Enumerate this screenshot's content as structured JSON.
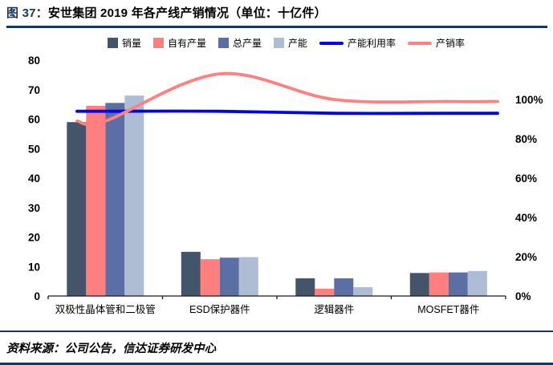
{
  "header": {
    "figure_label": "图 37：",
    "title": "安世集团 2019 年各产线产销情况（单位：十亿件）"
  },
  "legend": [
    {
      "label": "销量",
      "type": "bar",
      "color": "#44546A"
    },
    {
      "label": "自有产量",
      "type": "bar",
      "color": "#FF7F7F"
    },
    {
      "label": "总产量",
      "type": "bar",
      "color": "#5B6FA5"
    },
    {
      "label": "产能",
      "type": "bar",
      "color": "#AFBDD4"
    },
    {
      "label": "产能利用率",
      "type": "line",
      "color": "#0202F2"
    },
    {
      "label": "产销率",
      "type": "line",
      "color": "#FF8080"
    }
  ],
  "chart_data": {
    "type": "bar",
    "title": "安世集团 2019 年各产线产销情况（单位：十亿件）",
    "categories": [
      "双极性晶体管和二极管",
      "ESD保护器件",
      "逻辑器件",
      "MOSFET器件"
    ],
    "bar_series": [
      {
        "name": "销量",
        "axis": "left",
        "values": [
          59,
          15,
          6,
          7.8
        ],
        "color": "#44546A"
      },
      {
        "name": "自有产量",
        "axis": "left",
        "values": [
          64.5,
          12.5,
          2.5,
          8
        ],
        "color": "#FF7F7F"
      },
      {
        "name": "总产量",
        "axis": "left",
        "values": [
          65.5,
          13,
          6,
          8
        ],
        "color": "#5B6FA5"
      },
      {
        "name": "产能",
        "axis": "left",
        "values": [
          68,
          13.2,
          3,
          8.5
        ],
        "color": "#AFBDD4"
      }
    ],
    "line_series": [
      {
        "name": "产能利用率",
        "axis": "right",
        "values_pct": [
          94,
          94,
          93,
          93
        ],
        "color": "#0202F2"
      },
      {
        "name": "产销率",
        "axis": "right",
        "values_pct": [
          89,
          113,
          100,
          99
        ],
        "color": "#FF8080"
      }
    ],
    "left_axis": {
      "min": 0,
      "max": 80,
      "step": 10
    },
    "right_axis": {
      "min": 0,
      "max": 120,
      "step": 20,
      "label_max": 100,
      "suffix": "%"
    },
    "grid": false,
    "legend_position": "top",
    "xlabel": "",
    "ylabel": ""
  },
  "footer": {
    "source": "资料来源：公司公告，信达证券研发中心"
  },
  "colors": {
    "accent_navy": "#16365C",
    "axis_line": "#1A1A1A"
  }
}
